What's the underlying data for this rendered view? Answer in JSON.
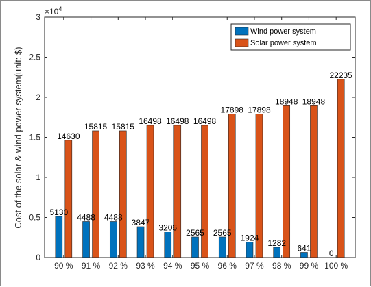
{
  "chart_data": {
    "type": "bar",
    "categories": [
      "90 %",
      "91 %",
      "92 %",
      "93 %",
      "94 %",
      "95 %",
      "96 %",
      "97 %",
      "98 %",
      "99 %",
      "100 %"
    ],
    "series": [
      {
        "name": "Wind power system",
        "values": [
          5130,
          4488,
          4488,
          3847,
          3206,
          2565,
          2565,
          1924,
          1282,
          641,
          0
        ],
        "color": "#0072BD"
      },
      {
        "name": "Solar power system",
        "values": [
          14630,
          15815,
          15815,
          16498,
          16498,
          16498,
          17898,
          17898,
          18948,
          18948,
          22235
        ],
        "color": "#D95319"
      }
    ],
    "data_labels": {
      "wind": [
        "5130",
        "4488",
        "4488",
        "3847",
        "3206",
        "2565",
        "2565",
        "1924",
        "1282",
        "641",
        "0"
      ],
      "solar": [
        "14630",
        "15815",
        "15815",
        "16498",
        "16498",
        "16498",
        "17898",
        "17898",
        "18948",
        "18948",
        "22235"
      ]
    },
    "ylabel": "Cost of the solar & wind power system(unit: $)",
    "y_exponent": "×10",
    "y_exponent_power": "4",
    "ylim": [
      0,
      30000
    ],
    "yticks": [
      0,
      5000,
      10000,
      15000,
      20000,
      25000,
      30000
    ],
    "ytick_labels": [
      "0",
      "0.5",
      "1",
      "1.5",
      "2",
      "2.5",
      "3"
    ],
    "legend_position": "top-right",
    "grid": false
  }
}
